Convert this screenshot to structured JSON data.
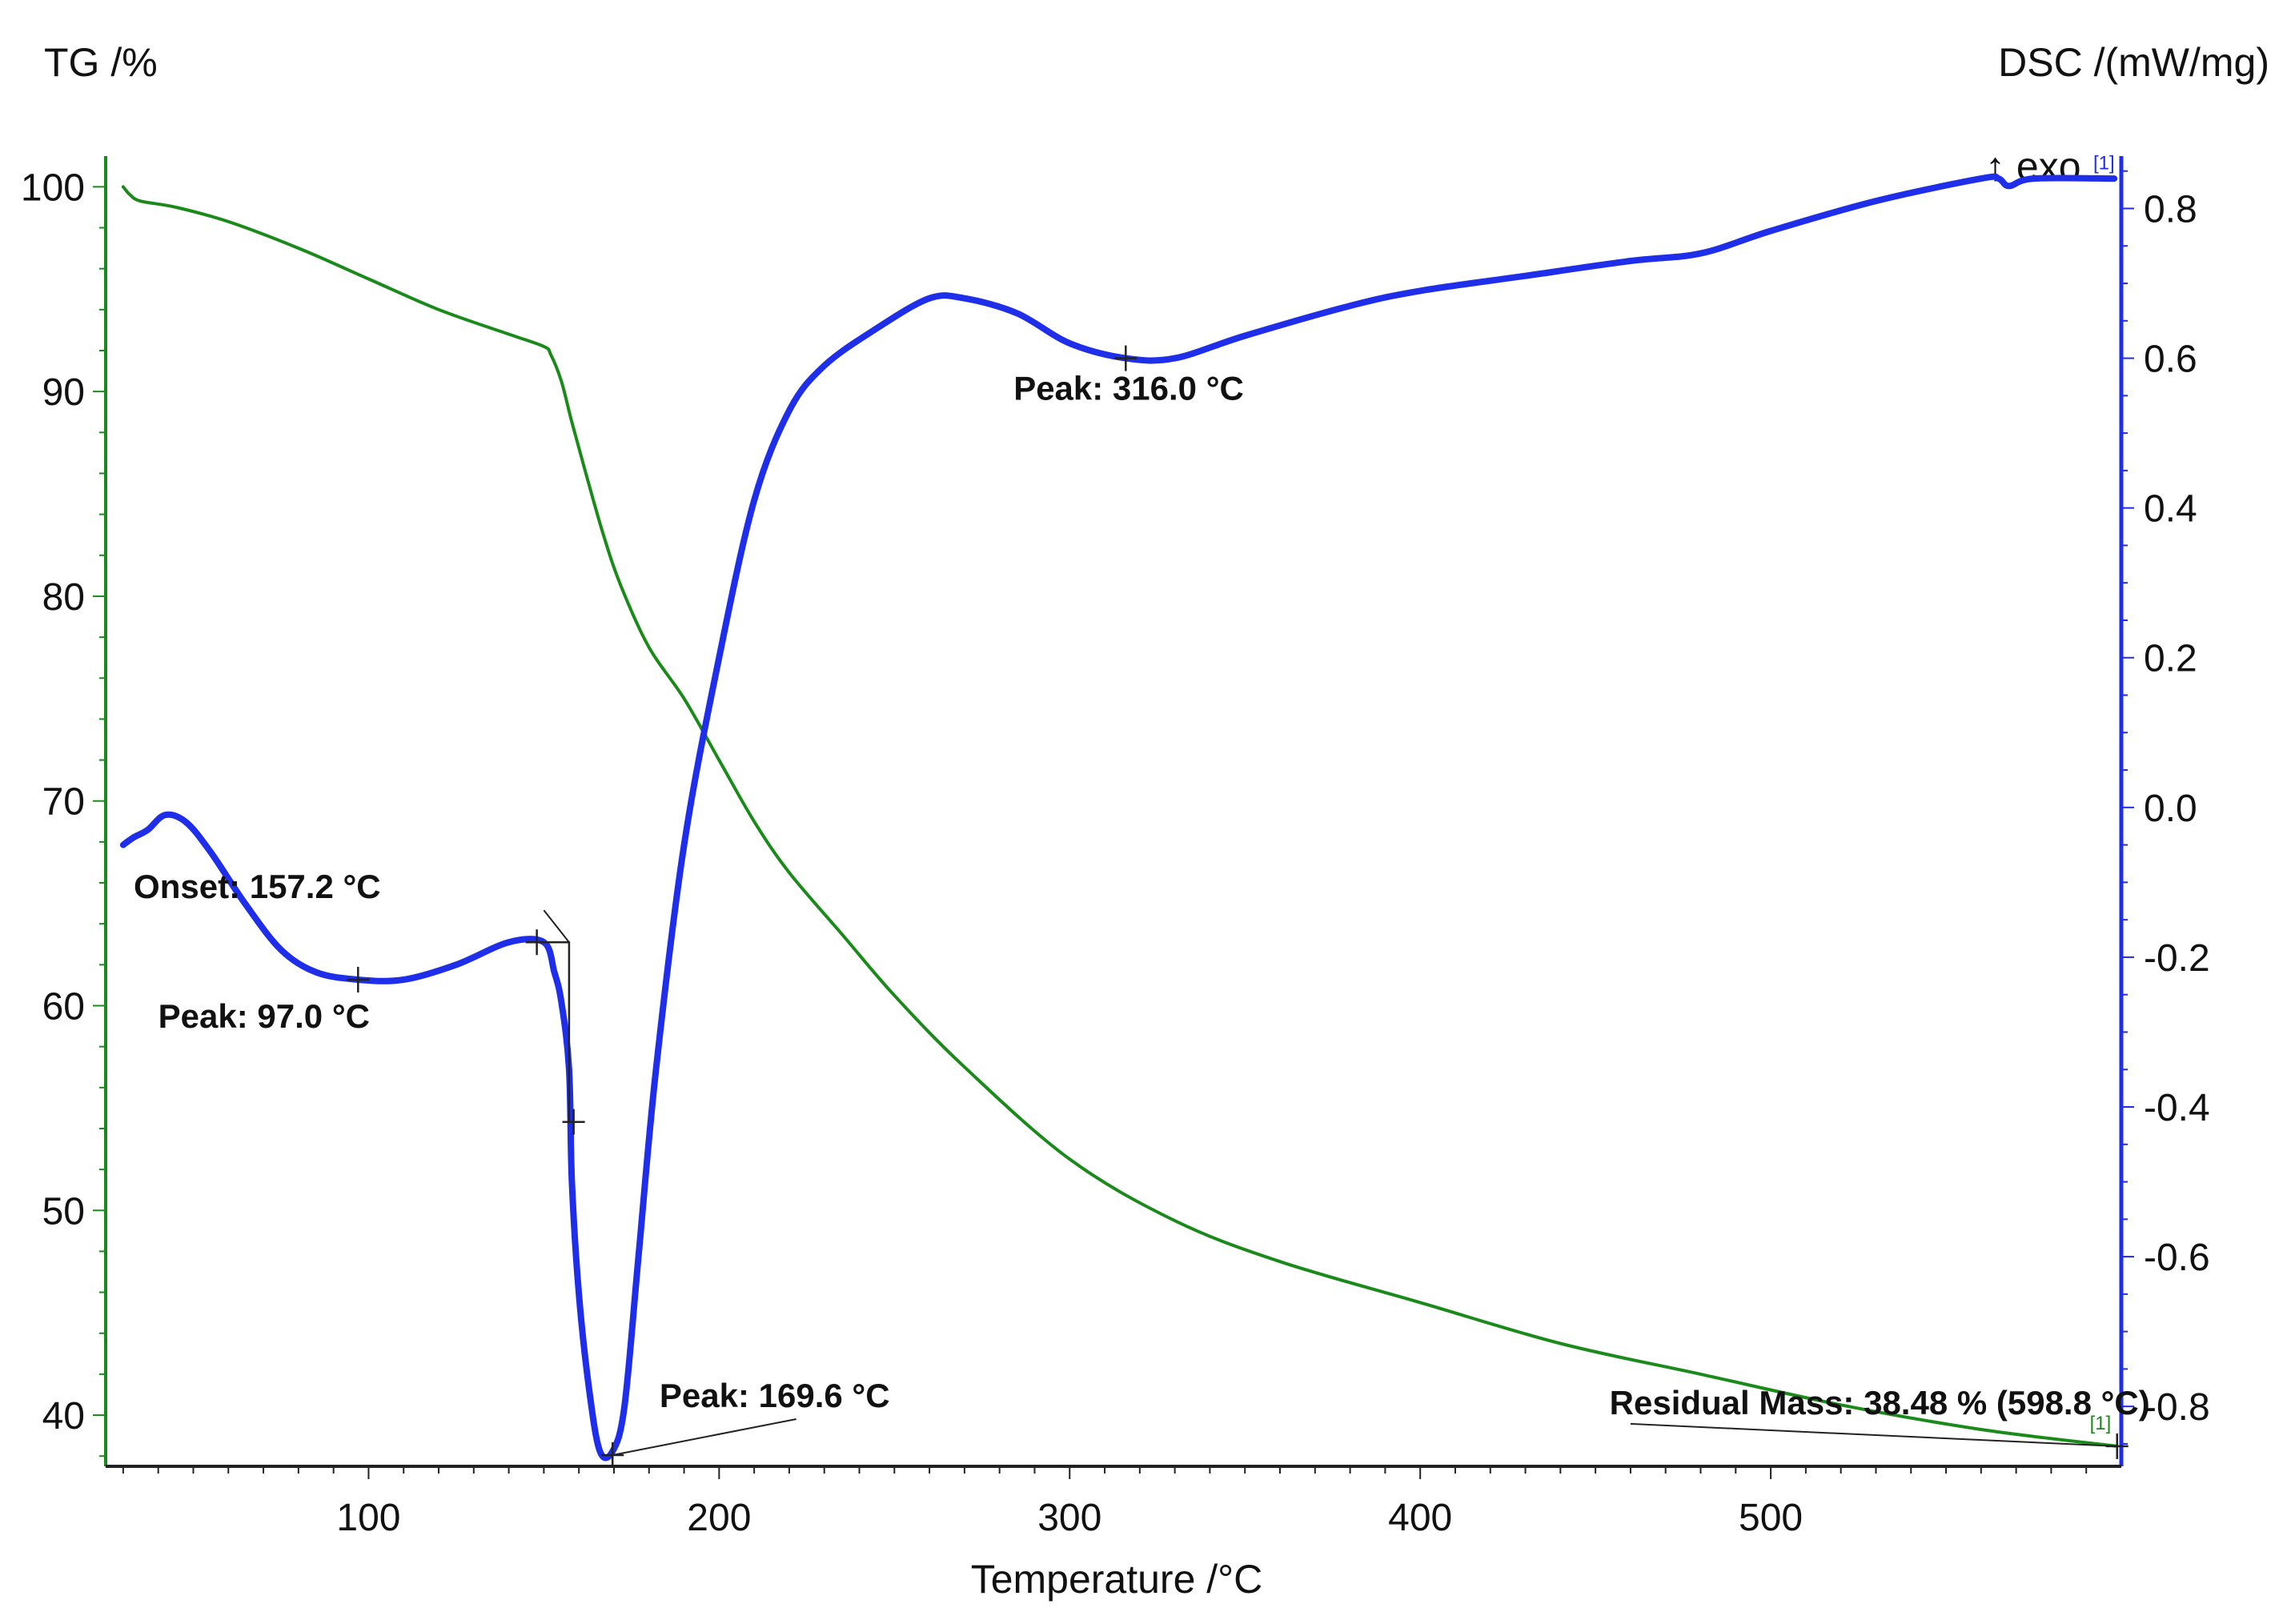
{
  "chart_data": {
    "type": "line",
    "xlabel": "Temperature /°C",
    "ylabel_left": "TG /%",
    "ylabel_right": "DSC /(mW/mg)",
    "xlim": [
      25,
      600
    ],
    "ylim_left": [
      37.5,
      101.5
    ],
    "ylim_right": [
      -0.88,
      0.87
    ],
    "x_ticks": [
      100,
      200,
      300,
      400,
      500
    ],
    "y_left_ticks": [
      40,
      50,
      60,
      70,
      80,
      90,
      100
    ],
    "y_right_ticks": [
      "0.8",
      "0.6",
      "0.4",
      "0.2",
      "0.0",
      "-0.2",
      "-0.4",
      "-0.6",
      "-0.8"
    ],
    "y_right_tick_values": [
      0.8,
      0.6,
      0.4,
      0.2,
      0.0,
      -0.2,
      -0.4,
      -0.6,
      -0.8
    ],
    "exo_label": "↑ exo",
    "series": [
      {
        "name": "TG",
        "axis": "left",
        "color": "#1a8a1a",
        "x": [
          30,
          32,
          35,
          45,
          60,
          80,
          100,
          120,
          140,
          150,
          152,
          155,
          158,
          162,
          167,
          172,
          180,
          190,
          200,
          210,
          220,
          235,
          250,
          270,
          300,
          330,
          360,
          400,
          440,
          480,
          520,
          560,
          598.8
        ],
        "y": [
          100,
          99.6,
          99.3,
          99.0,
          98.3,
          97.0,
          95.5,
          94.0,
          92.8,
          92.2,
          91.8,
          90.5,
          88.5,
          86.0,
          83.0,
          80.5,
          77.5,
          75.0,
          72.0,
          69.0,
          66.5,
          63.5,
          60.5,
          57.0,
          52.5,
          49.5,
          47.5,
          45.5,
          43.5,
          42.0,
          40.5,
          39.3,
          38.48
        ]
      },
      {
        "name": "DSC",
        "axis": "right",
        "color": "#1f2ee8",
        "x": [
          30,
          33,
          37,
          42,
          48,
          55,
          65,
          75,
          85,
          97,
          110,
          125,
          140,
          150,
          153,
          155,
          157.2,
          158,
          160,
          163,
          166,
          169.6,
          173,
          177,
          182,
          190,
          200,
          210,
          220,
          230,
          245,
          260,
          270,
          285,
          300,
          316,
          330,
          350,
          380,
          400,
          430,
          460,
          480,
          500,
          530,
          560,
          565,
          568,
          575,
          598
        ],
        "y": [
          -0.05,
          -0.04,
          -0.03,
          -0.01,
          -0.02,
          -0.06,
          -0.13,
          -0.19,
          -0.22,
          -0.23,
          -0.23,
          -0.21,
          -0.18,
          -0.18,
          -0.22,
          -0.26,
          -0.35,
          -0.5,
          -0.65,
          -0.78,
          -0.86,
          -0.86,
          -0.8,
          -0.6,
          -0.35,
          -0.05,
          0.2,
          0.41,
          0.53,
          0.59,
          0.64,
          0.68,
          0.68,
          0.66,
          0.62,
          0.6,
          0.6,
          0.63,
          0.67,
          0.69,
          0.71,
          0.73,
          0.74,
          0.77,
          0.81,
          0.84,
          0.84,
          0.83,
          0.84,
          0.84
        ]
      }
    ],
    "annotations": [
      {
        "text": "Onset: 157.2 °C"
      },
      {
        "text": "Peak: 97.0 °C"
      },
      {
        "text": "Peak: 169.6 °C"
      },
      {
        "text": "Peak: 316.0 °C"
      },
      {
        "text": "Residual Mass: 38.48 % (598.8 °C)"
      }
    ],
    "curve_tags": {
      "dsc": "[1]",
      "tg": "[1]"
    },
    "grid": false
  }
}
